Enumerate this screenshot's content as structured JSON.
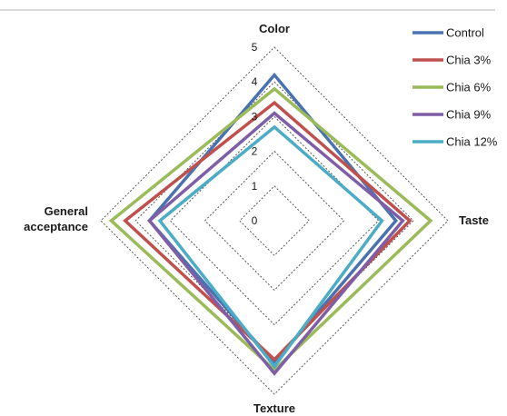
{
  "chart_data": {
    "type": "radar",
    "axes": [
      "Color",
      "Taste",
      "Texture",
      "General acceptance"
    ],
    "axis_label_lines": [
      [
        "Color"
      ],
      [
        "Taste"
      ],
      [
        "Texture"
      ],
      [
        "General",
        "acceptance"
      ]
    ],
    "rmin": 0,
    "rmax": 5,
    "ticks": [
      0,
      1,
      2,
      3,
      4,
      5
    ],
    "grid": true,
    "legend_position": "top-right",
    "series": [
      {
        "name": "Control",
        "color": "#4a72b0",
        "values": [
          4.2,
          3.5,
          4.1,
          3.6
        ]
      },
      {
        "name": "Chia 3%",
        "color": "#c0504d",
        "values": [
          3.4,
          3.9,
          4.0,
          4.3
        ]
      },
      {
        "name": "Chia 6%",
        "color": "#9bbb59",
        "values": [
          3.8,
          4.5,
          4.3,
          4.7
        ]
      },
      {
        "name": "Chia 9%",
        "color": "#7f5ea8",
        "values": [
          3.1,
          3.7,
          4.4,
          3.6
        ]
      },
      {
        "name": "Chia 12%",
        "color": "#4bacc6",
        "values": [
          2.7,
          3.1,
          4.2,
          3.3
        ]
      }
    ]
  }
}
